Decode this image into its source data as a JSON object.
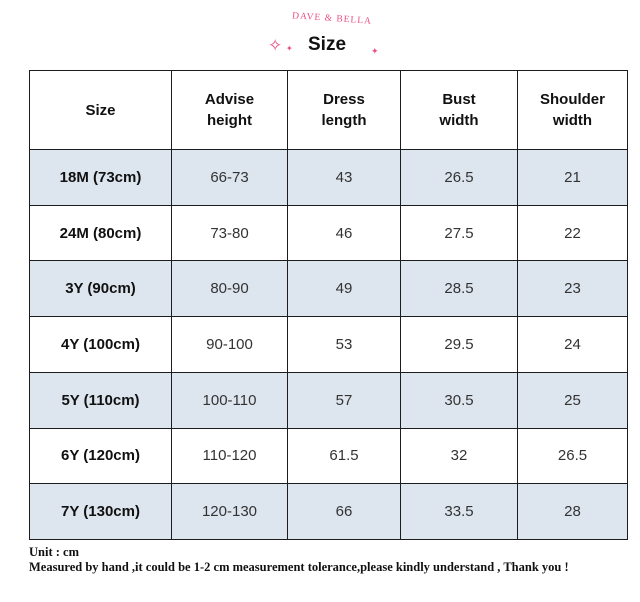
{
  "header": {
    "brand": "DAVE & BELLA",
    "title": "Size"
  },
  "table": {
    "columns": [
      "Size",
      "Advise height",
      "Dress length",
      "Bust width",
      "Shoulder width"
    ],
    "rows": [
      [
        "18M (73cm)",
        "66-73",
        "43",
        "26.5",
        "21"
      ],
      [
        "24M (80cm)",
        "73-80",
        "46",
        "27.5",
        "22"
      ],
      [
        "3Y (90cm)",
        "80-90",
        "49",
        "28.5",
        "23"
      ],
      [
        "4Y (100cm)",
        "90-100",
        "53",
        "29.5",
        "24"
      ],
      [
        "5Y (110cm)",
        "100-110",
        "57",
        "30.5",
        "25"
      ],
      [
        "6Y (120cm)",
        "110-120",
        "61.5",
        "32",
        "26.5"
      ],
      [
        "7Y (130cm)",
        "120-130",
        "66",
        "33.5",
        "28"
      ]
    ]
  },
  "footer": {
    "unit": "Unit : cm",
    "note": "Measured by hand ,it could be 1-2 cm measurement tolerance,please kindly understand , Thank you !"
  },
  "colors": {
    "shaded_row": "#dde5ef",
    "brand_pink": "#ea4f83",
    "border": "#1c1c1c"
  },
  "icons": [
    "sparkle-icon"
  ]
}
